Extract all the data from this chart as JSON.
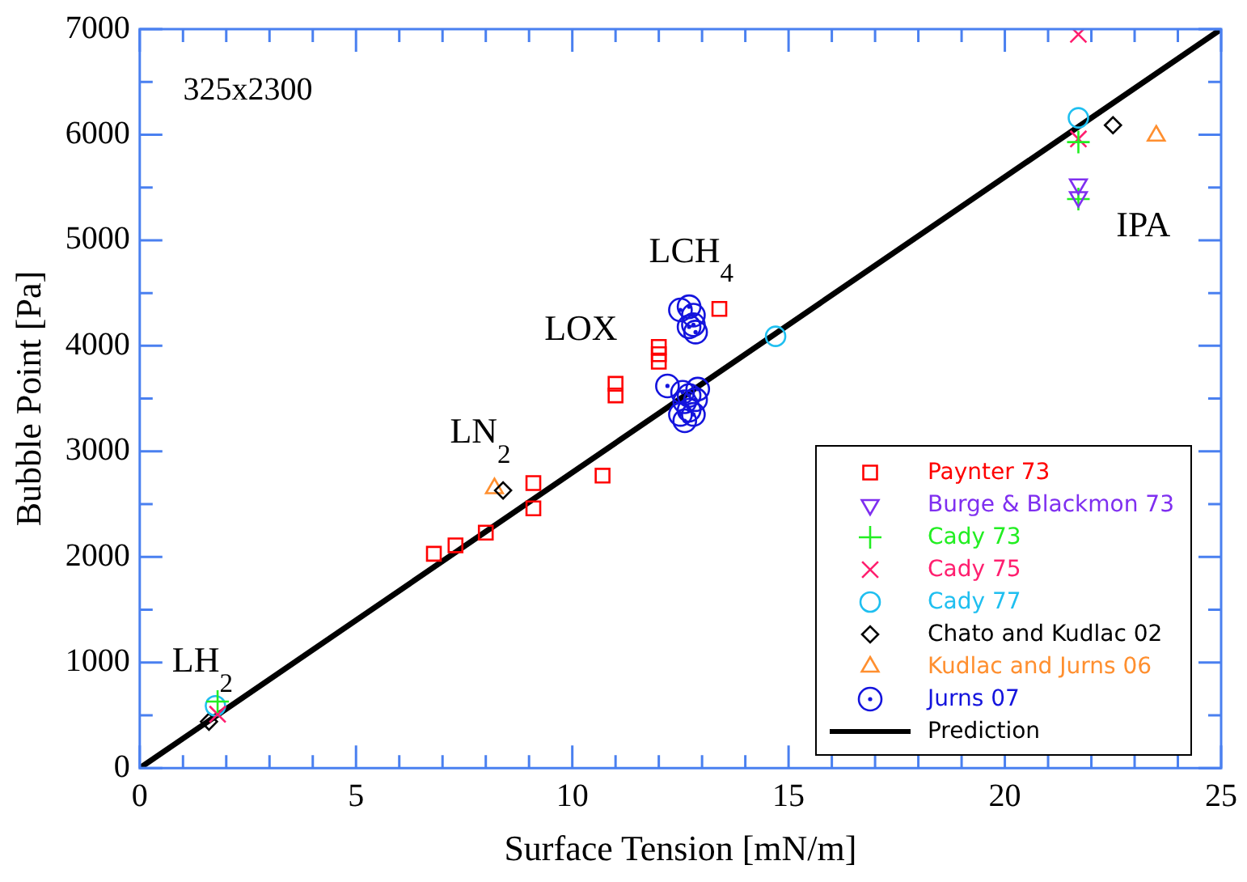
{
  "chart_data": {
    "type": "scatter",
    "xlabel": "Surface Tension [mN/m]",
    "ylabel": "Bubble Point [Pa]",
    "xlim": [
      0,
      25
    ],
    "ylim": [
      0,
      7000
    ],
    "xticks": [
      0,
      {
        "value": 1,
        "label": null
      },
      {
        "value": 2,
        "label": null
      },
      {
        "value": 3,
        "label": null
      },
      {
        "value": 4,
        "label": null
      },
      5,
      {
        "value": 6,
        "label": null
      },
      {
        "value": 7,
        "label": null
      },
      {
        "value": 8,
        "label": null
      },
      {
        "value": 9,
        "label": null
      },
      10,
      {
        "value": 11,
        "label": null
      },
      {
        "value": 12,
        "label": null
      },
      {
        "value": 13,
        "label": null
      },
      {
        "value": 14,
        "label": null
      },
      15,
      {
        "value": 16,
        "label": null
      },
      {
        "value": 17,
        "label": null
      },
      {
        "value": 18,
        "label": null
      },
      {
        "value": 19,
        "label": null
      },
      20,
      {
        "value": 21,
        "label": null
      },
      {
        "value": 22,
        "label": null
      },
      {
        "value": 23,
        "label": null
      },
      {
        "value": 24,
        "label": null
      },
      25
    ],
    "yticks": [
      0,
      {
        "value": 500,
        "label": null
      },
      1000,
      {
        "value": 1500,
        "label": null
      },
      2000,
      {
        "value": 2500,
        "label": null
      },
      3000,
      {
        "value": 3500,
        "label": null
      },
      4000,
      {
        "value": 4500,
        "label": null
      },
      5000,
      {
        "value": 5500,
        "label": null
      },
      6000,
      {
        "value": 6500,
        "label": null
      },
      7000
    ],
    "grid": false,
    "legend": "bottom right",
    "series": [
      {
        "name": "Paynter 73",
        "color": "#ff0000",
        "marker": "square",
        "x": [
          6.8,
          7.3,
          8.0,
          9.1,
          9.1,
          10.7,
          11.0,
          11.0,
          12.0,
          12.0,
          12.0,
          13.4
        ],
        "values": [
          2030,
          2110,
          2230,
          2460,
          2700,
          2770,
          3530,
          3640,
          3850,
          3920,
          3990,
          4350
        ]
      },
      {
        "name": "Burge & Blackmon 73",
        "color": "#7f2ff0",
        "marker": "triangle_down",
        "x": [
          21.7,
          21.7
        ],
        "values": [
          5530,
          5410
        ]
      },
      {
        "name": "Cady 73",
        "color": "#22ee22",
        "marker": "plus",
        "x": [
          1.8,
          21.7,
          21.7
        ],
        "values": [
          630,
          5930,
          5390
        ]
      },
      {
        "name": "Cady 75",
        "color": "#ff1f6f",
        "marker": "x",
        "x": [
          1.8,
          21.7,
          21.7
        ],
        "values": [
          510,
          5960,
          6950
        ]
      },
      {
        "name": "Cady 77",
        "color": "#1fbff0",
        "marker": "circle",
        "x": [
          1.75,
          14.7,
          21.7
        ],
        "values": [
          590,
          4090,
          6160
        ]
      },
      {
        "name": "Chato and Kudlac 02",
        "color": "#000000",
        "marker": "diamond",
        "x": [
          1.6,
          8.4,
          22.5
        ],
        "values": [
          440,
          2630,
          6090
        ]
      },
      {
        "name": "Kudlac and Jurns 06",
        "color": "#ff8f2f",
        "marker": "triangle",
        "x": [
          8.2,
          23.5
        ],
        "values": [
          2650,
          5990
        ]
      },
      {
        "name": "Jurns 07",
        "color": "#1414dd",
        "marker": "circle_dot",
        "x": [
          12.5,
          12.7,
          12.8,
          12.8,
          12.85,
          12.7,
          12.2,
          12.6,
          12.7,
          12.8,
          12.5,
          12.6,
          12.9,
          12.85,
          12.7,
          12.55
        ],
        "values": [
          4340,
          4370,
          4290,
          4200,
          4130,
          4180,
          3620,
          3470,
          3390,
          3350,
          3350,
          3290,
          3590,
          3490,
          3530,
          3560
        ]
      },
      {
        "name": "Prediction",
        "type": "line",
        "color": "#000000",
        "marker": "none",
        "line_style": "solid",
        "x": [
          0,
          25
        ],
        "values": [
          0,
          7000
        ]
      }
    ],
    "annotations": [
      "325x2300",
      "LH$_{2}$",
      "LN$_{2}$",
      "LOX",
      "LCH$_{4}$",
      "IPA"
    ]
  }
}
